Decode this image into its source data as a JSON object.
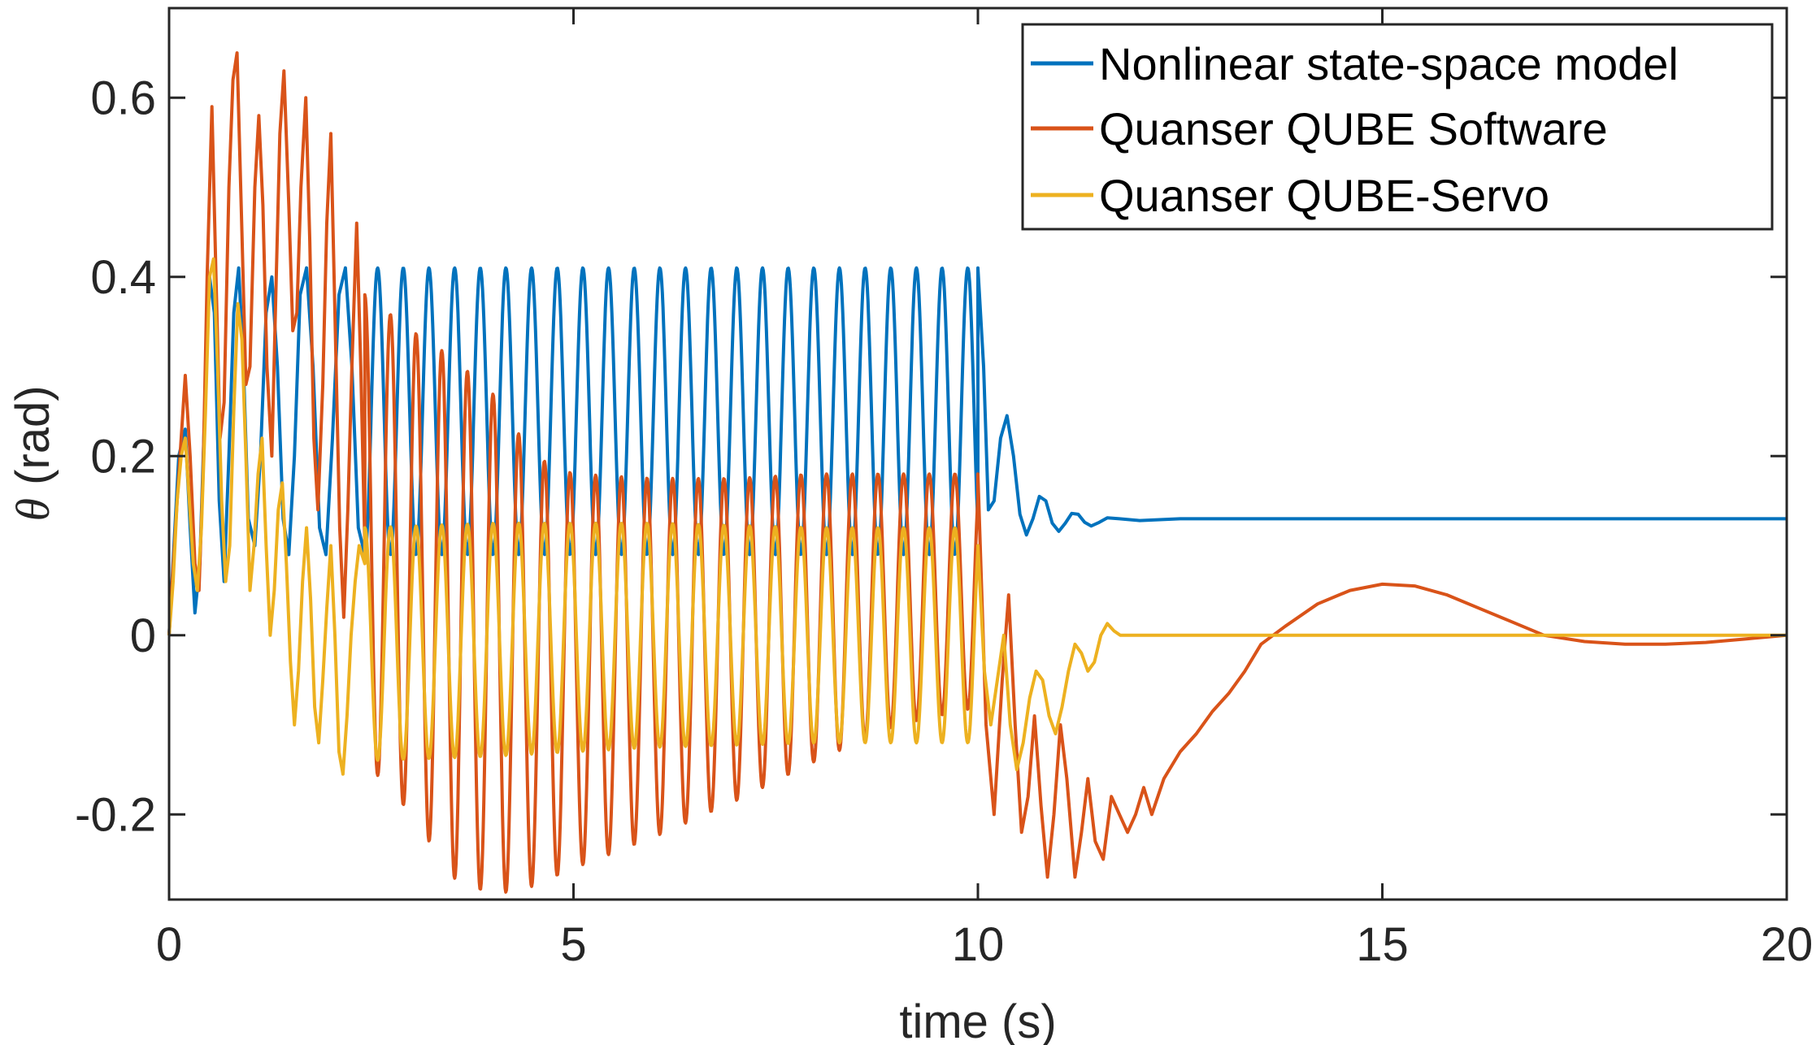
{
  "chart_data": {
    "type": "line",
    "title": "",
    "xlabel": "time (s)",
    "ylabel_symbol": "θ",
    "ylabel_unit": " (rad)",
    "xlim": [
      0,
      20
    ],
    "ylim": [
      -0.295,
      0.7
    ],
    "xticks": [
      0,
      5,
      10,
      15,
      20
    ],
    "yticks": [
      -0.2,
      0,
      0.2,
      0.4,
      0.6
    ],
    "grid": false,
    "box": true,
    "legend_position": "top-right",
    "series": [
      {
        "name": "Nonlinear state-space model",
        "color": "#0072BD",
        "segments": [
          {
            "kind": "points",
            "x": [
              0,
              0.06,
              0.12,
              0.2,
              0.26,
              0.32,
              0.38,
              0.44,
              0.5,
              0.56,
              0.62,
              0.68,
              0.74,
              0.8,
              0.86,
              0.92,
              0.98,
              1.06,
              1.13,
              1.2,
              1.27,
              1.34,
              1.41,
              1.48,
              1.55,
              1.62,
              1.7,
              1.78,
              1.86,
              1.94,
              2.02,
              2.1,
              2.18,
              2.26,
              2.34,
              2.42
            ],
            "y": [
              0,
              0.1,
              0.2,
              0.23,
              0.12,
              0.025,
              0.08,
              0.25,
              0.4,
              0.36,
              0.15,
              0.06,
              0.2,
              0.36,
              0.41,
              0.3,
              0.13,
              0.1,
              0.2,
              0.36,
              0.4,
              0.3,
              0.13,
              0.09,
              0.2,
              0.38,
              0.41,
              0.3,
              0.12,
              0.09,
              0.22,
              0.38,
              0.41,
              0.3,
              0.12,
              0.09
            ]
          },
          {
            "kind": "oscillation",
            "t_start": 2.42,
            "t_end": 10.0,
            "center": 0.25,
            "amplitude": 0.16,
            "period": 0.3172,
            "phase": 4.712
          },
          {
            "kind": "points",
            "x": [
              10.0,
              10.07,
              10.13,
              10.2,
              10.28,
              10.36,
              10.44,
              10.52,
              10.6,
              10.68,
              10.76,
              10.84,
              10.92,
              11.0,
              11.08,
              11.16,
              11.24,
              11.32,
              11.4,
              11.5,
              11.6,
              11.75,
              12.0,
              12.5,
              13.5,
              20.0
            ],
            "y": [
              0.41,
              0.3,
              0.14,
              0.15,
              0.22,
              0.245,
              0.2,
              0.135,
              0.112,
              0.13,
              0.155,
              0.15,
              0.125,
              0.116,
              0.125,
              0.136,
              0.135,
              0.126,
              0.122,
              0.126,
              0.131,
              0.13,
              0.128,
              0.13,
              0.13,
              0.13
            ]
          }
        ]
      },
      {
        "name": "Quanser QUBE Software",
        "color": "#D95319",
        "segments": [
          {
            "kind": "points",
            "x": [
              0,
              0.1,
              0.2,
              0.26,
              0.32,
              0.37,
              0.42,
              0.47,
              0.53,
              0.58,
              0.63,
              0.68,
              0.74,
              0.79,
              0.84,
              0.9,
              0.95,
              1.0,
              1.06,
              1.11,
              1.16,
              1.21,
              1.27,
              1.32,
              1.37,
              1.42,
              1.48,
              1.53,
              1.58,
              1.63,
              1.69,
              1.74,
              1.79,
              1.84,
              1.9,
              1.95,
              2.0,
              2.05,
              2.11,
              2.16,
              2.21,
              2.26,
              2.32,
              2.37,
              2.42
            ],
            "y": [
              0,
              0.15,
              0.29,
              0.2,
              0.08,
              0.05,
              0.18,
              0.4,
              0.59,
              0.4,
              0.22,
              0.26,
              0.5,
              0.62,
              0.65,
              0.45,
              0.28,
              0.3,
              0.5,
              0.58,
              0.48,
              0.3,
              0.2,
              0.38,
              0.56,
              0.63,
              0.48,
              0.34,
              0.36,
              0.5,
              0.6,
              0.44,
              0.22,
              0.14,
              0.28,
              0.46,
              0.56,
              0.36,
              0.12,
              0.02,
              0.14,
              0.3,
              0.46,
              0.3,
              0.1
            ]
          },
          {
            "kind": "oscillation",
            "t_start": 2.42,
            "t_end": 10.0,
            "period": 0.3172,
            "phase": 1.571,
            "center_knots": [
              [
                2.42,
                0.12
              ],
              [
                3.0,
                0.07
              ],
              [
                3.5,
                0.02
              ],
              [
                4.0,
                -0.01
              ],
              [
                4.5,
                -0.04
              ],
              [
                5.0,
                -0.04
              ],
              [
                6.0,
                -0.025
              ],
              [
                7.0,
                -0.005
              ],
              [
                8.0,
                0.02
              ],
              [
                9.0,
                0.04
              ],
              [
                10.0,
                0.05
              ]
            ],
            "amp_knots": [
              [
                2.42,
                0.26
              ],
              [
                3.0,
                0.27
              ],
              [
                3.5,
                0.29
              ],
              [
                4.0,
                0.28
              ],
              [
                4.5,
                0.24
              ],
              [
                5.0,
                0.22
              ],
              [
                6.0,
                0.2
              ],
              [
                7.0,
                0.18
              ],
              [
                8.0,
                0.16
              ],
              [
                9.0,
                0.14
              ],
              [
                10.0,
                0.13
              ]
            ]
          },
          {
            "kind": "points",
            "x": [
              10.0,
              10.1,
              10.2,
              10.3,
              10.38,
              10.46,
              10.54,
              10.62,
              10.7,
              10.78,
              10.86,
              10.94,
              11.02,
              11.1,
              11.2,
              11.28,
              11.36,
              11.45,
              11.55,
              11.65,
              11.75,
              11.85,
              11.95,
              12.05,
              12.15,
              12.3,
              12.5,
              12.7,
              12.9,
              13.1,
              13.3,
              13.5,
              13.8,
              14.2,
              14.6,
              15.0,
              15.4,
              15.8,
              16.2,
              16.6,
              17.0,
              17.5,
              18.0,
              18.5,
              19.0,
              19.5,
              20.0
            ],
            "y": [
              0.18,
              -0.1,
              -0.2,
              -0.05,
              0.045,
              -0.1,
              -0.22,
              -0.18,
              -0.09,
              -0.19,
              -0.27,
              -0.2,
              -0.1,
              -0.16,
              -0.27,
              -0.22,
              -0.16,
              -0.23,
              -0.25,
              -0.18,
              -0.2,
              -0.22,
              -0.2,
              -0.17,
              -0.2,
              -0.16,
              -0.13,
              -0.11,
              -0.085,
              -0.065,
              -0.04,
              -0.01,
              0.01,
              0.035,
              0.05,
              0.057,
              0.055,
              0.045,
              0.03,
              0.015,
              0.0,
              -0.007,
              -0.01,
              -0.01,
              -0.008,
              -0.004,
              0.0
            ]
          }
        ]
      },
      {
        "name": "Quanser QUBE-Servo",
        "color": "#EDB120",
        "segments": [
          {
            "kind": "points",
            "x": [
              0,
              0.05,
              0.1,
              0.15,
              0.2,
              0.25,
              0.3,
              0.35,
              0.4,
              0.45,
              0.5,
              0.55,
              0.6,
              0.65,
              0.7,
              0.75,
              0.8,
              0.85,
              0.9,
              0.95,
              1.0,
              1.05,
              1.1,
              1.15,
              1.2,
              1.25,
              1.3,
              1.35,
              1.4,
              1.45,
              1.5,
              1.55,
              1.6,
              1.65,
              1.7,
              1.75,
              1.8,
              1.85,
              1.9,
              1.95,
              2.0,
              2.05,
              2.1,
              2.15,
              2.2,
              2.25,
              2.3,
              2.35,
              2.42
            ],
            "y": [
              0,
              0.06,
              0.15,
              0.2,
              0.22,
              0.15,
              0.08,
              0.05,
              0.12,
              0.25,
              0.4,
              0.42,
              0.3,
              0.15,
              0.06,
              0.1,
              0.25,
              0.37,
              0.33,
              0.2,
              0.05,
              0.1,
              0.18,
              0.22,
              0.1,
              0.0,
              0.05,
              0.14,
              0.17,
              0.08,
              -0.03,
              -0.1,
              -0.04,
              0.06,
              0.12,
              0.04,
              -0.08,
              -0.12,
              -0.05,
              0.03,
              0.1,
              0.0,
              -0.13,
              -0.155,
              -0.09,
              0.0,
              0.06,
              0.1,
              0.08
            ]
          },
          {
            "kind": "oscillation",
            "t_start": 2.42,
            "t_end": 10.0,
            "period": 0.3172,
            "phase": 1.571,
            "center_knots": [
              [
                2.42,
                -0.01
              ],
              [
                4.0,
                -0.005
              ],
              [
                6.0,
                0.0
              ],
              [
                8.0,
                0.0
              ],
              [
                10.0,
                0.0
              ]
            ],
            "amp_knots": [
              [
                2.42,
                0.13
              ],
              [
                4.0,
                0.13
              ],
              [
                6.0,
                0.125
              ],
              [
                8.0,
                0.12
              ],
              [
                10.0,
                0.12
              ]
            ]
          },
          {
            "kind": "points",
            "x": [
              10.0,
              10.08,
              10.16,
              10.24,
              10.32,
              10.4,
              10.48,
              10.56,
              10.64,
              10.72,
              10.8,
              10.88,
              10.96,
              11.04,
              11.12,
              11.2,
              11.28,
              11.36,
              11.44,
              11.52,
              11.6,
              11.68,
              11.76,
              11.84,
              12.0,
              13.0,
              15.0,
              17.0,
              20.0
            ],
            "y": [
              0.1,
              -0.04,
              -0.1,
              -0.05,
              0.0,
              -0.1,
              -0.15,
              -0.12,
              -0.07,
              -0.04,
              -0.05,
              -0.09,
              -0.11,
              -0.08,
              -0.04,
              -0.01,
              -0.02,
              -0.04,
              -0.03,
              0.0,
              0.013,
              0.005,
              0.0,
              0.0,
              0.0,
              0.0,
              0.0,
              0.0,
              0.0
            ]
          }
        ]
      }
    ]
  }
}
